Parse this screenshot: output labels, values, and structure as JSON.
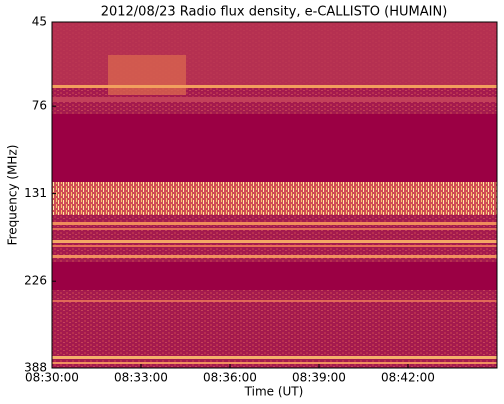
{
  "chart_data": {
    "type": "spectrogram",
    "title": "2012/08/23  Radio flux density, e-CALLISTO (HUMAIN)",
    "x_label": "Time (UT)",
    "y_label": "Frequency (MHz)",
    "xlim": [
      510,
      525
    ],
    "xticks": [
      {
        "value": 510,
        "label": "08:30:00"
      },
      {
        "value": 513,
        "label": "08:33:00"
      },
      {
        "value": 516,
        "label": "08:36:00"
      },
      {
        "value": 519,
        "label": "08:39:00"
      },
      {
        "value": 522,
        "label": "08:42:00"
      }
    ],
    "ylim": [
      45,
      388
    ],
    "y_scale": "log",
    "y_inverted": true,
    "yticks": [
      45,
      76,
      131,
      226,
      388
    ]
  }
}
